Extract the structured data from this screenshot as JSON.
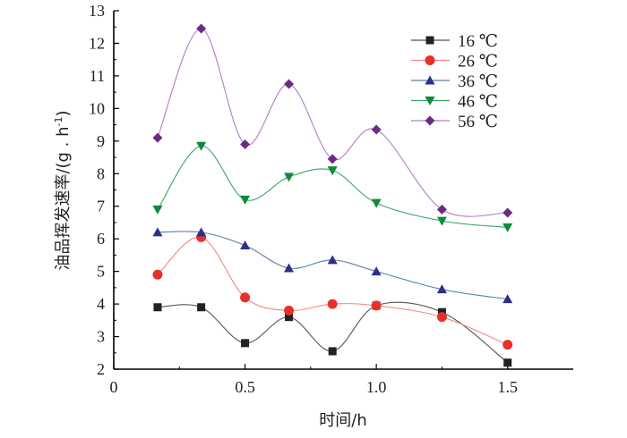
{
  "chart_data": {
    "type": "line",
    "title": "",
    "xlabel": "时间/h",
    "ylabel": "油品挥发速率/(g . h",
    "ylabel_sup": "-1",
    "ylabel_tail": ")",
    "xlim": [
      0,
      1.75
    ],
    "ylim": [
      2,
      13
    ],
    "xticks": [
      0,
      0.5,
      1.0,
      1.5
    ],
    "xtick_labels": [
      "0",
      "0.5",
      "1.0",
      "1.5"
    ],
    "yticks": [
      2,
      3,
      4,
      5,
      6,
      7,
      8,
      9,
      10,
      11,
      12,
      13
    ],
    "ytick_labels": [
      "2",
      "3",
      "4",
      "5",
      "6",
      "7",
      "8",
      "9",
      "10",
      "11",
      "12",
      "13"
    ],
    "grid": false,
    "legend_position": "top-right",
    "x": [
      0.167,
      0.333,
      0.5,
      0.667,
      0.833,
      1.0,
      1.25,
      1.5
    ],
    "series": [
      {
        "name": "16 ℃",
        "marker": "square",
        "color": "#222222",
        "line_color": "#555555",
        "values": [
          3.9,
          3.9,
          2.8,
          3.6,
          2.55,
          3.95,
          3.75,
          2.2
        ]
      },
      {
        "name": "26 ℃",
        "marker": "circle",
        "color": "#e8302a",
        "line_color": "#f08a80",
        "values": [
          4.9,
          6.05,
          4.2,
          3.8,
          4.0,
          3.95,
          3.6,
          2.75
        ]
      },
      {
        "name": "36 ℃",
        "marker": "triangle-up",
        "color": "#2e2f86",
        "line_color": "#5c7fa8",
        "values": [
          6.2,
          6.2,
          5.8,
          5.1,
          5.35,
          5.0,
          4.45,
          4.15
        ]
      },
      {
        "name": "46 ℃",
        "marker": "triangle-down",
        "color": "#0f8a3a",
        "line_color": "#3aa66a",
        "values": [
          6.9,
          8.85,
          7.2,
          7.9,
          8.1,
          7.1,
          6.55,
          6.35
        ]
      },
      {
        "name": "56 ℃",
        "marker": "diamond",
        "color": "#6a2b86",
        "line_color": "#b27ec4",
        "values": [
          9.1,
          12.45,
          8.9,
          10.75,
          8.45,
          9.35,
          6.9,
          6.8
        ]
      }
    ]
  }
}
